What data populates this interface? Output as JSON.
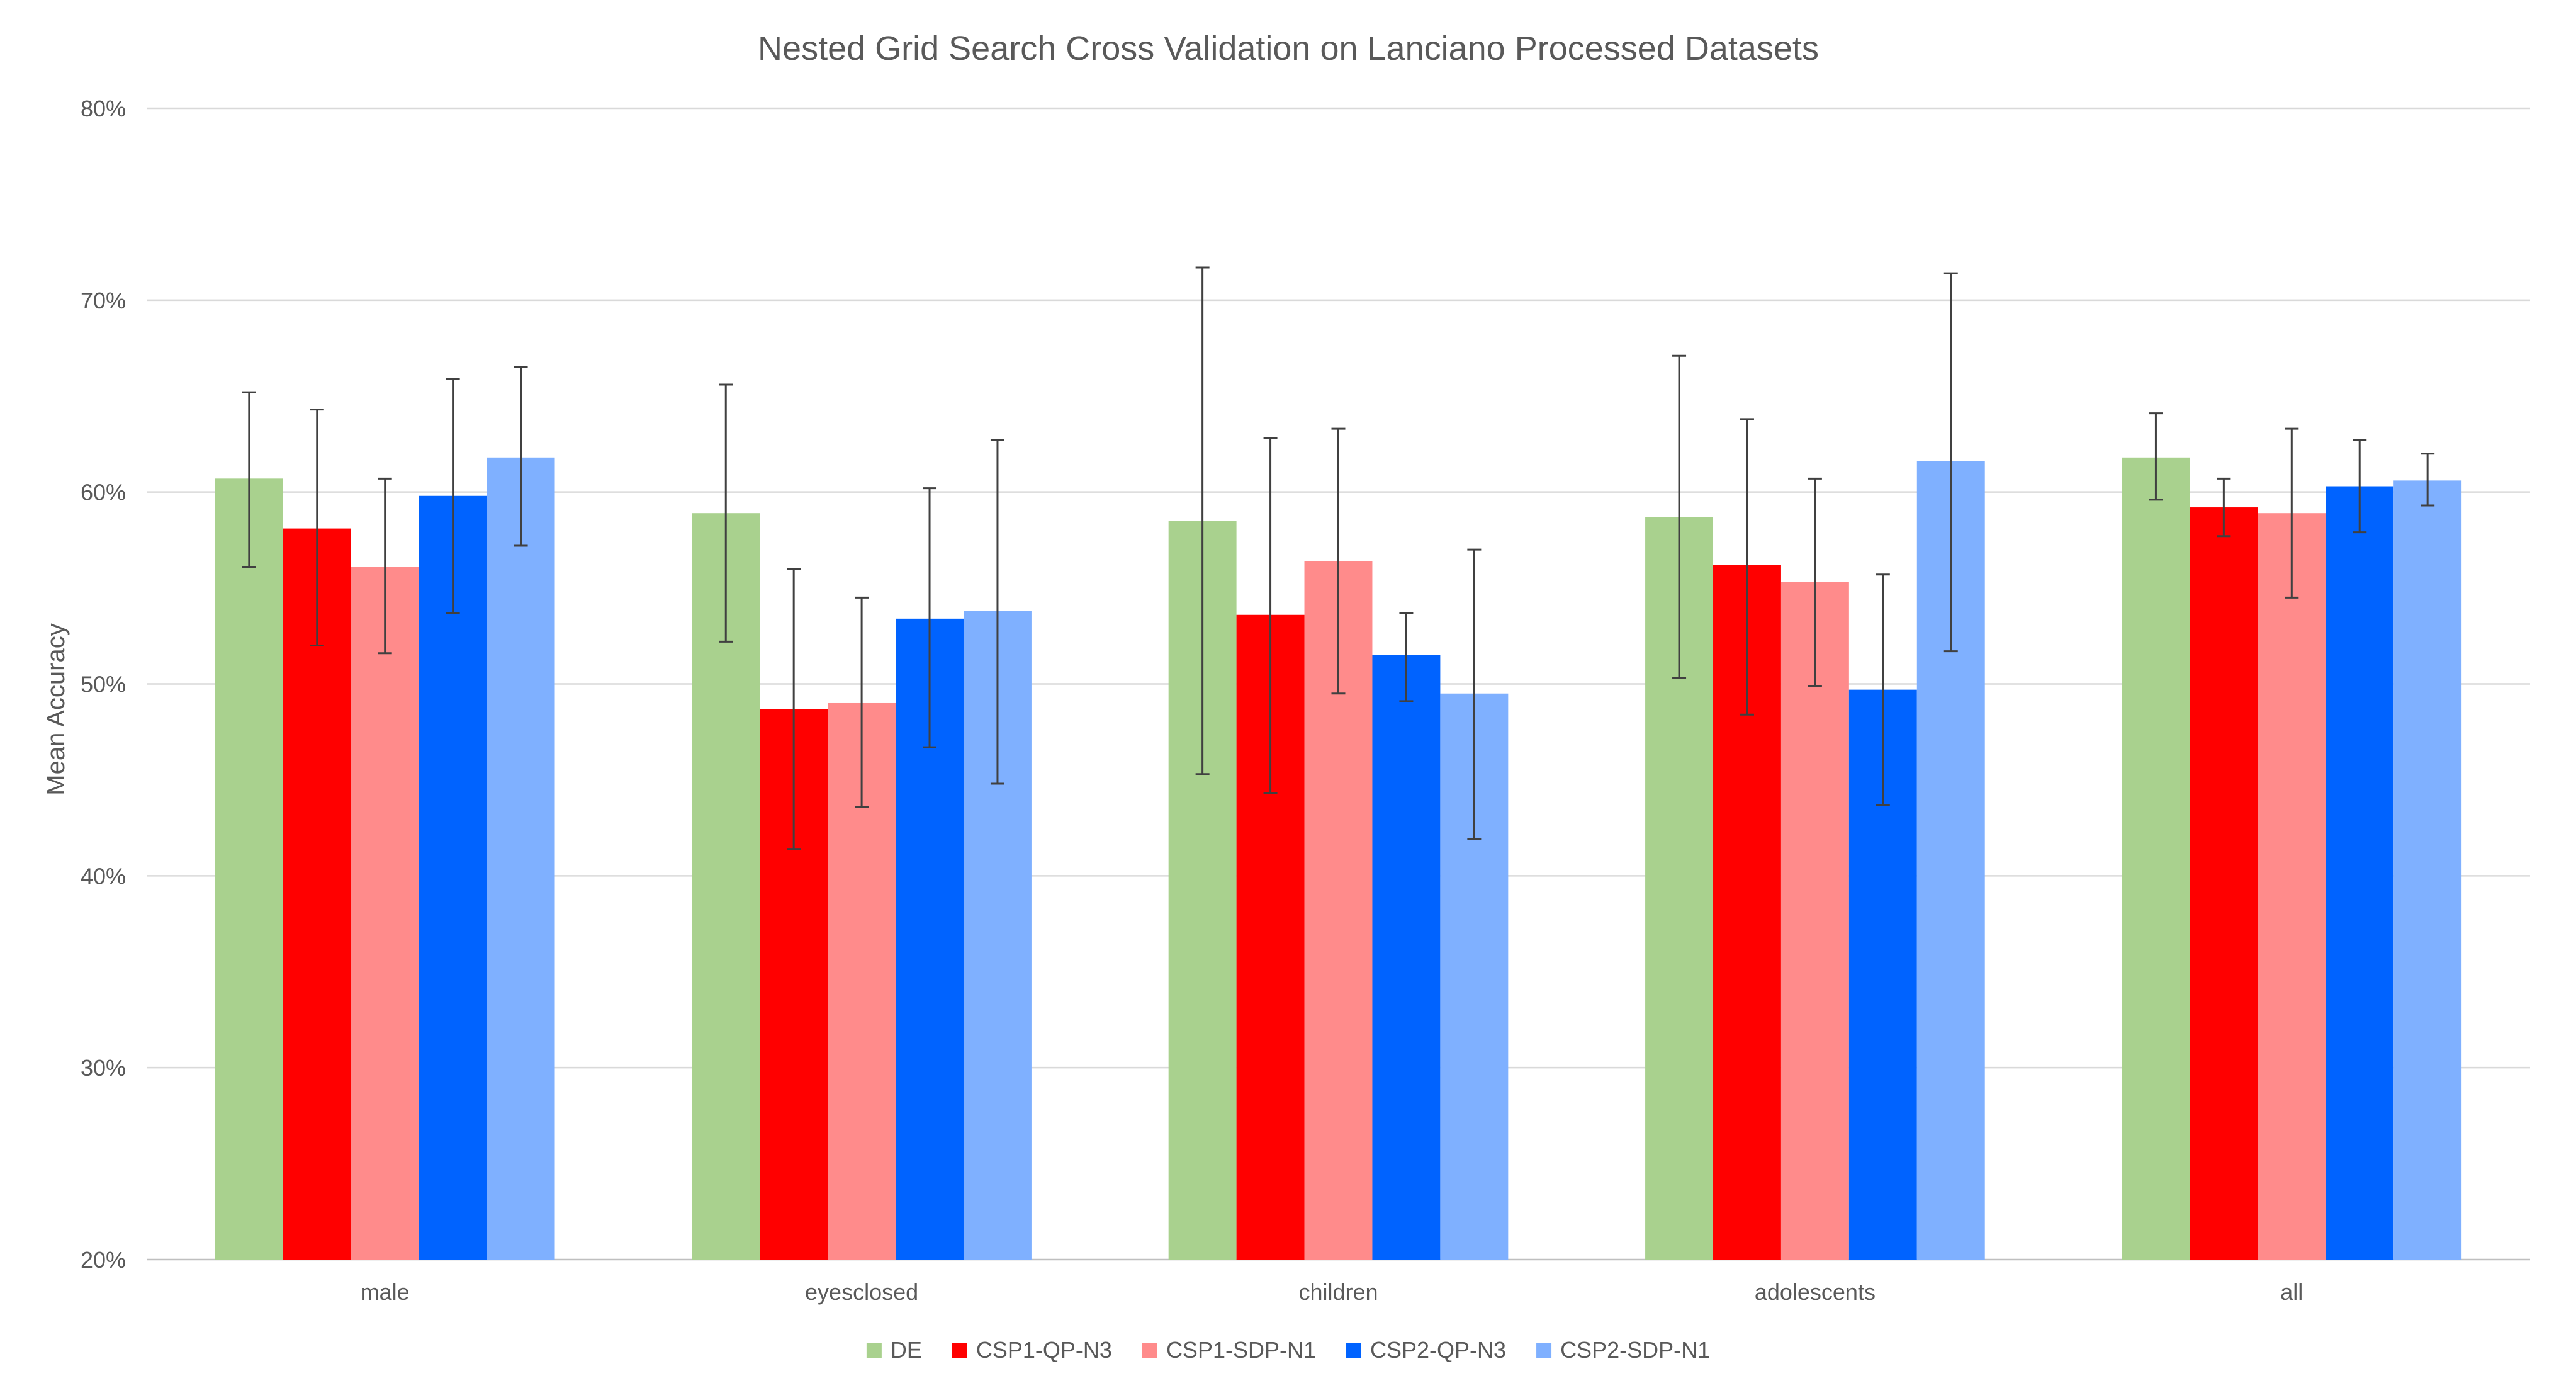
{
  "chart_data": {
    "type": "bar",
    "title": "Nested Grid Search Cross Validation on Lanciano Processed Datasets",
    "xlabel": "",
    "ylabel": "Mean Accuracy",
    "ylim": [
      0.2,
      0.8
    ],
    "yticks": [
      0.2,
      0.3,
      0.4,
      0.5,
      0.6,
      0.7,
      0.8
    ],
    "ytick_labels": [
      "20%",
      "30%",
      "40%",
      "50%",
      "60%",
      "70%",
      "80%"
    ],
    "grid": true,
    "legend_position": "bottom",
    "categories": [
      "male",
      "eyesclosed",
      "children",
      "adolescents",
      "all"
    ],
    "series": [
      {
        "name": "DE",
        "color": "#a9d18e",
        "values": [
          0.607,
          0.589,
          0.585,
          0.587,
          0.618
        ],
        "error_low": [
          0.561,
          0.522,
          0.453,
          0.503,
          0.596
        ],
        "error_high": [
          0.652,
          0.656,
          0.717,
          0.671,
          0.641
        ]
      },
      {
        "name": "CSP1-QP-N3",
        "color": "#ff0000",
        "values": [
          0.581,
          0.487,
          0.536,
          0.562,
          0.592
        ],
        "error_low": [
          0.52,
          0.414,
          0.443,
          0.484,
          0.577
        ],
        "error_high": [
          0.643,
          0.56,
          0.628,
          0.638,
          0.607
        ]
      },
      {
        "name": "CSP1-SDP-N1",
        "color": "#ff8b8b",
        "values": [
          0.561,
          0.49,
          0.564,
          0.553,
          0.589
        ],
        "error_low": [
          0.516,
          0.436,
          0.495,
          0.499,
          0.545
        ],
        "error_high": [
          0.607,
          0.545,
          0.633,
          0.607,
          0.633
        ]
      },
      {
        "name": "CSP2-QP-N3",
        "color": "#0063ff",
        "values": [
          0.598,
          0.534,
          0.515,
          0.497,
          0.603
        ],
        "error_low": [
          0.537,
          0.467,
          0.491,
          0.437,
          0.579
        ],
        "error_high": [
          0.659,
          0.602,
          0.537,
          0.557,
          0.627
        ]
      },
      {
        "name": "CSP2-SDP-N1",
        "color": "#7fb0ff",
        "values": [
          0.618,
          0.538,
          0.495,
          0.616,
          0.606
        ],
        "error_low": [
          0.572,
          0.448,
          0.419,
          0.517,
          0.593
        ],
        "error_high": [
          0.665,
          0.627,
          0.57,
          0.714,
          0.62
        ]
      }
    ]
  }
}
